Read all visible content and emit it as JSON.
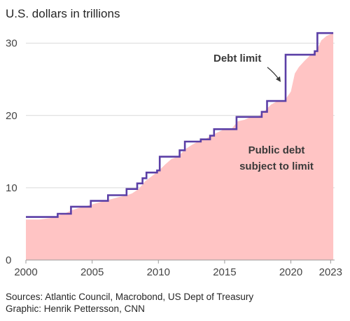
{
  "header": {
    "unit_label": "U.S. dollars in trillions"
  },
  "footer": {
    "sources": "Sources: Atlantic Council, Macrobond, US Dept of Treasury",
    "credit": "Graphic: Henrik Pettersson, CNN"
  },
  "colors": {
    "area": "#ffc4c4",
    "limit_line": "#5b3fa6",
    "grid": "#d9d9d9",
    "axis": "#9a9a9a"
  },
  "chart_data": {
    "type": "area",
    "title": "",
    "xlabel": "",
    "ylabel": "U.S. dollars in trillions",
    "xlim": [
      2000,
      2023.3
    ],
    "ylim": [
      0,
      32
    ],
    "grid": true,
    "x_ticks": [
      2000,
      2005,
      2010,
      2015,
      2020,
      2023
    ],
    "y_ticks": [
      0,
      10,
      20,
      30
    ],
    "x_tick_labels": [
      "2000",
      "2005",
      "2010",
      "2015",
      "2020",
      "2023"
    ],
    "y_tick_labels": [
      "0",
      "10",
      "20",
      "30"
    ],
    "series": [
      {
        "name": "Debt limit",
        "style": "step-line",
        "points": [
          [
            2000.0,
            5.95
          ],
          [
            2002.4,
            5.95
          ],
          [
            2002.4,
            6.4
          ],
          [
            2003.4,
            6.4
          ],
          [
            2003.4,
            7.38
          ],
          [
            2004.9,
            7.38
          ],
          [
            2004.9,
            8.18
          ],
          [
            2006.2,
            8.18
          ],
          [
            2006.2,
            8.97
          ],
          [
            2007.6,
            8.97
          ],
          [
            2007.6,
            9.82
          ],
          [
            2008.4,
            9.82
          ],
          [
            2008.4,
            10.6
          ],
          [
            2008.8,
            10.6
          ],
          [
            2008.8,
            11.32
          ],
          [
            2009.1,
            11.32
          ],
          [
            2009.1,
            12.1
          ],
          [
            2009.9,
            12.1
          ],
          [
            2009.9,
            12.39
          ],
          [
            2010.1,
            12.39
          ],
          [
            2010.1,
            14.29
          ],
          [
            2011.6,
            14.29
          ],
          [
            2011.6,
            15.19
          ],
          [
            2012.0,
            15.19
          ],
          [
            2012.0,
            16.39
          ],
          [
            2013.2,
            16.39
          ],
          [
            2013.2,
            16.7
          ],
          [
            2013.9,
            16.7
          ],
          [
            2013.9,
            17.2
          ],
          [
            2014.2,
            17.2
          ],
          [
            2014.2,
            18.1
          ],
          [
            2015.9,
            18.1
          ],
          [
            2015.9,
            19.8
          ],
          [
            2017.8,
            19.8
          ],
          [
            2017.8,
            20.5
          ],
          [
            2018.2,
            20.5
          ],
          [
            2018.2,
            22.0
          ],
          [
            2019.6,
            22.0
          ],
          [
            2019.6,
            28.4
          ],
          [
            2021.8,
            28.4
          ],
          [
            2021.8,
            28.9
          ],
          [
            2022.0,
            28.9
          ],
          [
            2022.0,
            31.4
          ],
          [
            2023.2,
            31.4
          ]
        ]
      },
      {
        "name": "Public debt subject to limit",
        "style": "area",
        "points": [
          [
            2000.0,
            5.6
          ],
          [
            2001.0,
            5.6
          ],
          [
            2002.0,
            5.85
          ],
          [
            2002.5,
            6.2
          ],
          [
            2003.0,
            6.5
          ],
          [
            2003.5,
            6.9
          ],
          [
            2004.0,
            7.2
          ],
          [
            2004.5,
            7.45
          ],
          [
            2005.0,
            7.7
          ],
          [
            2005.5,
            7.95
          ],
          [
            2006.0,
            8.2
          ],
          [
            2006.5,
            8.45
          ],
          [
            2007.0,
            8.7
          ],
          [
            2007.5,
            8.9
          ],
          [
            2008.0,
            9.2
          ],
          [
            2008.5,
            9.8
          ],
          [
            2009.0,
            10.9
          ],
          [
            2009.5,
            11.6
          ],
          [
            2010.0,
            12.3
          ],
          [
            2010.5,
            13.2
          ],
          [
            2011.0,
            14.0
          ],
          [
            2011.5,
            14.3
          ],
          [
            2012.0,
            15.3
          ],
          [
            2012.5,
            15.9
          ],
          [
            2013.0,
            16.4
          ],
          [
            2013.5,
            16.7
          ],
          [
            2014.0,
            17.2
          ],
          [
            2014.5,
            17.7
          ],
          [
            2015.0,
            18.1
          ],
          [
            2015.5,
            18.1
          ],
          [
            2016.0,
            19.2
          ],
          [
            2016.5,
            19.4
          ],
          [
            2017.0,
            19.8
          ],
          [
            2017.5,
            19.8
          ],
          [
            2018.0,
            20.6
          ],
          [
            2018.5,
            21.5
          ],
          [
            2019.0,
            22.0
          ],
          [
            2019.5,
            22.0
          ],
          [
            2020.0,
            23.3
          ],
          [
            2020.3,
            25.8
          ],
          [
            2020.6,
            26.7
          ],
          [
            2021.0,
            27.5
          ],
          [
            2021.5,
            28.4
          ],
          [
            2021.9,
            28.8
          ],
          [
            2022.3,
            30.4
          ],
          [
            2022.7,
            31.0
          ],
          [
            2023.2,
            31.4
          ]
        ]
      }
    ],
    "annotations": [
      {
        "text": "Debt limit",
        "points_to": [
          2019.6,
          26.0
        ]
      },
      {
        "text": "Public debt",
        "line2": "subject to limit"
      }
    ]
  }
}
